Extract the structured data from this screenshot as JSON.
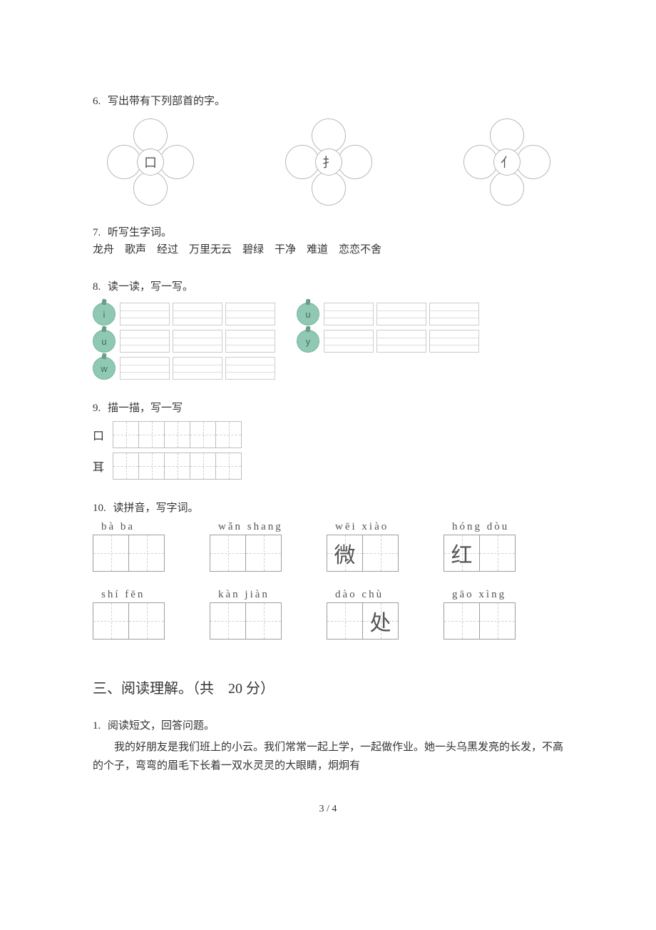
{
  "q6": {
    "num": "6.",
    "text": "写出带有下列部首的字。",
    "radicals": [
      "口",
      "扌",
      "亻"
    ]
  },
  "q7": {
    "num": "7.",
    "text": "听写生字词。",
    "words": "龙舟　歌声　经过　万里无云　碧绿　干净　难道　恋恋不舍"
  },
  "q8": {
    "num": "8.",
    "text": "读一读，写一写。",
    "left_labels": [
      "i",
      "u",
      "w"
    ],
    "right_labels": [
      "u",
      "y"
    ],
    "boxes_per_row": 3
  },
  "q9": {
    "num": "9.",
    "text": "描一描，写一写",
    "chars": [
      "口",
      "耳"
    ],
    "cells": 5
  },
  "q10": {
    "num": "10.",
    "text": "读拼音，写字词。",
    "items": [
      {
        "pinyin": "bà   ba",
        "cells": [
          "",
          ""
        ]
      },
      {
        "pinyin": "wǎn shang",
        "cells": [
          "",
          ""
        ]
      },
      {
        "pinyin": "wēi  xiào",
        "cells": [
          "微",
          ""
        ]
      },
      {
        "pinyin": "hóng dòu",
        "cells": [
          "红",
          ""
        ]
      },
      {
        "pinyin": "shí  fēn",
        "cells": [
          "",
          ""
        ]
      },
      {
        "pinyin": "kàn  jiàn",
        "cells": [
          "",
          ""
        ]
      },
      {
        "pinyin": "dào  chù",
        "cells": [
          "",
          "处"
        ]
      },
      {
        "pinyin": "gāo  xìng",
        "cells": [
          "",
          ""
        ]
      }
    ]
  },
  "section3": {
    "title": "三、阅读理解。（共　20 分）"
  },
  "reading1": {
    "num": "1.",
    "text": "阅读短文，回答问题。",
    "para": "我的好朋友是我们班上的小云。我们常常一起上学，一起做作业。她一头乌黑发亮的长发，不高的个子，弯弯的眉毛下长着一双水灵灵的大眼睛，炯炯有"
  },
  "footer": "3 / 4"
}
